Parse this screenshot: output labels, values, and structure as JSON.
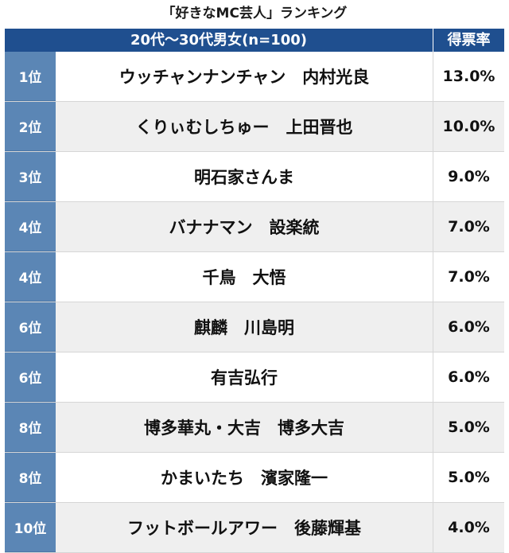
{
  "title": "「好きなMC芸人」ランキング",
  "header": {
    "segment": "20代〜30代男女(n=100)",
    "rate_label": "得票率"
  },
  "rows": [
    {
      "rank": "1位",
      "name": "ウッチャンナンチャン　内村光良",
      "rate": "13.0%"
    },
    {
      "rank": "2位",
      "name": "くりぃむしちゅー　上田晋也",
      "rate": "10.0%"
    },
    {
      "rank": "3位",
      "name": "明石家さんま",
      "rate": "9.0%"
    },
    {
      "rank": "4位",
      "name": "バナナマン　設楽統",
      "rate": "7.0%"
    },
    {
      "rank": "4位",
      "name": "千鳥　大悟",
      "rate": "7.0%"
    },
    {
      "rank": "6位",
      "name": "麒麟　川島明",
      "rate": "6.0%"
    },
    {
      "rank": "6位",
      "name": "有吉弘行",
      "rate": "6.0%"
    },
    {
      "rank": "8位",
      "name": "博多華丸・大吉　博多大吉",
      "rate": "5.0%"
    },
    {
      "rank": "8位",
      "name": "かまいたち　濱家隆一",
      "rate": "5.0%"
    },
    {
      "rank": "10位",
      "name": "フットボールアワー　後藤輝基",
      "rate": "4.0%"
    }
  ],
  "colors": {
    "header_bg": "#1f4f8f",
    "rank_bg": "#5b86b5",
    "stripe_bg": "#efefef"
  }
}
